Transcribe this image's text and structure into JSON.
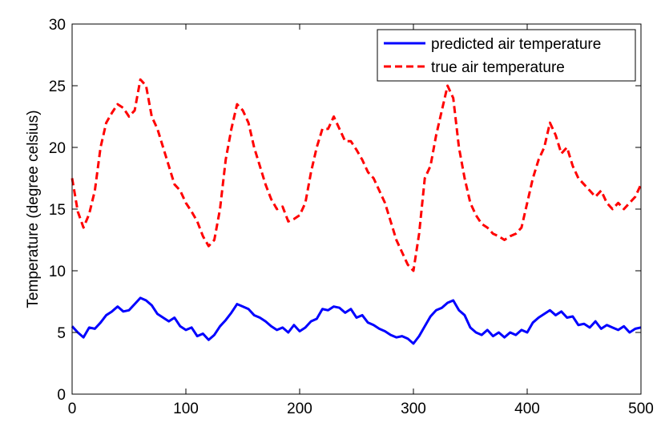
{
  "chart_data": {
    "type": "line",
    "title": "",
    "xlabel": "",
    "ylabel": "Temperature (degree celsius)",
    "xlim": [
      0,
      500
    ],
    "ylim": [
      0,
      30
    ],
    "xticks": [
      0,
      100,
      200,
      300,
      400,
      500
    ],
    "yticks": [
      0,
      5,
      10,
      15,
      20,
      25,
      30
    ],
    "grid": false,
    "legend_position": "top-right",
    "series": [
      {
        "name": "predicted air temperature",
        "color": "#0000ff",
        "style": "solid",
        "x": [
          0,
          5,
          10,
          15,
          20,
          25,
          30,
          35,
          40,
          45,
          50,
          55,
          60,
          65,
          70,
          75,
          80,
          85,
          90,
          95,
          100,
          105,
          110,
          115,
          120,
          125,
          130,
          135,
          140,
          145,
          150,
          155,
          160,
          165,
          170,
          175,
          180,
          185,
          190,
          195,
          200,
          205,
          210,
          215,
          220,
          225,
          230,
          235,
          240,
          245,
          250,
          255,
          260,
          265,
          270,
          275,
          280,
          285,
          290,
          295,
          300,
          305,
          310,
          315,
          320,
          325,
          330,
          335,
          340,
          345,
          350,
          355,
          360,
          365,
          370,
          375,
          380,
          385,
          390,
          395,
          400,
          405,
          410,
          415,
          420,
          425,
          430,
          435,
          440,
          445,
          450,
          455,
          460,
          465,
          470,
          475,
          480,
          485,
          490,
          495,
          500
        ],
        "values": [
          5.5,
          5.0,
          4.6,
          5.4,
          5.3,
          5.8,
          6.4,
          6.7,
          7.1,
          6.7,
          6.8,
          7.3,
          7.8,
          7.6,
          7.2,
          6.5,
          6.2,
          5.9,
          6.2,
          5.5,
          5.2,
          5.4,
          4.7,
          4.9,
          4.4,
          4.8,
          5.5,
          6.0,
          6.6,
          7.3,
          7.1,
          6.9,
          6.4,
          6.2,
          5.9,
          5.5,
          5.2,
          5.4,
          5.0,
          5.6,
          5.1,
          5.4,
          5.9,
          6.1,
          6.9,
          6.8,
          7.1,
          7.0,
          6.6,
          6.9,
          6.2,
          6.4,
          5.8,
          5.6,
          5.3,
          5.1,
          4.8,
          4.6,
          4.7,
          4.5,
          4.1,
          4.7,
          5.5,
          6.3,
          6.8,
          7.0,
          7.4,
          7.6,
          6.8,
          6.4,
          5.4,
          5.0,
          4.8,
          5.2,
          4.7,
          5.0,
          4.6,
          5.0,
          4.8,
          5.2,
          5.0,
          5.8,
          6.2,
          6.5,
          6.8,
          6.4,
          6.7,
          6.2,
          6.3,
          5.6,
          5.7,
          5.4,
          5.9,
          5.3,
          5.6,
          5.4,
          5.2,
          5.5,
          5.0,
          5.3,
          5.4
        ]
      },
      {
        "name": "true air temperature",
        "color": "#ff0000",
        "style": "dashed",
        "x": [
          0,
          5,
          10,
          15,
          20,
          25,
          30,
          35,
          40,
          45,
          50,
          55,
          60,
          65,
          70,
          75,
          80,
          85,
          90,
          95,
          100,
          105,
          110,
          115,
          120,
          125,
          130,
          135,
          140,
          145,
          150,
          155,
          160,
          165,
          170,
          175,
          180,
          185,
          190,
          195,
          200,
          205,
          210,
          215,
          220,
          225,
          230,
          235,
          240,
          245,
          250,
          255,
          260,
          265,
          270,
          275,
          280,
          285,
          290,
          295,
          300,
          305,
          310,
          315,
          320,
          325,
          330,
          335,
          340,
          345,
          350,
          355,
          360,
          365,
          370,
          375,
          380,
          385,
          390,
          395,
          400,
          405,
          410,
          415,
          420,
          425,
          430,
          435,
          440,
          445,
          450,
          455,
          460,
          465,
          470,
          475,
          480,
          485,
          490,
          495,
          500
        ],
        "values": [
          17.5,
          14.8,
          13.5,
          14.6,
          16.5,
          20.0,
          22.0,
          22.8,
          23.5,
          23.2,
          22.5,
          23.0,
          25.5,
          25.0,
          22.5,
          21.5,
          20.0,
          18.5,
          17.0,
          16.5,
          15.5,
          14.8,
          14.0,
          12.8,
          12.0,
          12.5,
          15.0,
          19.0,
          21.5,
          23.5,
          23.0,
          22.0,
          20.0,
          18.5,
          17.0,
          15.8,
          15.0,
          15.2,
          14.0,
          14.2,
          14.5,
          15.5,
          18.0,
          20.0,
          21.5,
          21.5,
          22.5,
          21.5,
          20.5,
          20.5,
          19.8,
          19.0,
          18.0,
          17.5,
          16.5,
          15.5,
          14.0,
          12.5,
          11.5,
          10.5,
          10.0,
          13.0,
          17.5,
          18.5,
          21.0,
          23.0,
          25.0,
          24.0,
          20.0,
          17.5,
          15.5,
          14.5,
          13.8,
          13.5,
          13.0,
          12.8,
          12.5,
          12.8,
          13.0,
          13.5,
          15.5,
          17.5,
          19.0,
          20.0,
          22.0,
          21.0,
          19.5,
          20.0,
          18.5,
          17.5,
          17.0,
          16.5,
          16.0,
          16.5,
          15.5,
          15.0,
          15.5,
          15.0,
          15.5,
          16.0,
          17.0
        ]
      }
    ]
  }
}
